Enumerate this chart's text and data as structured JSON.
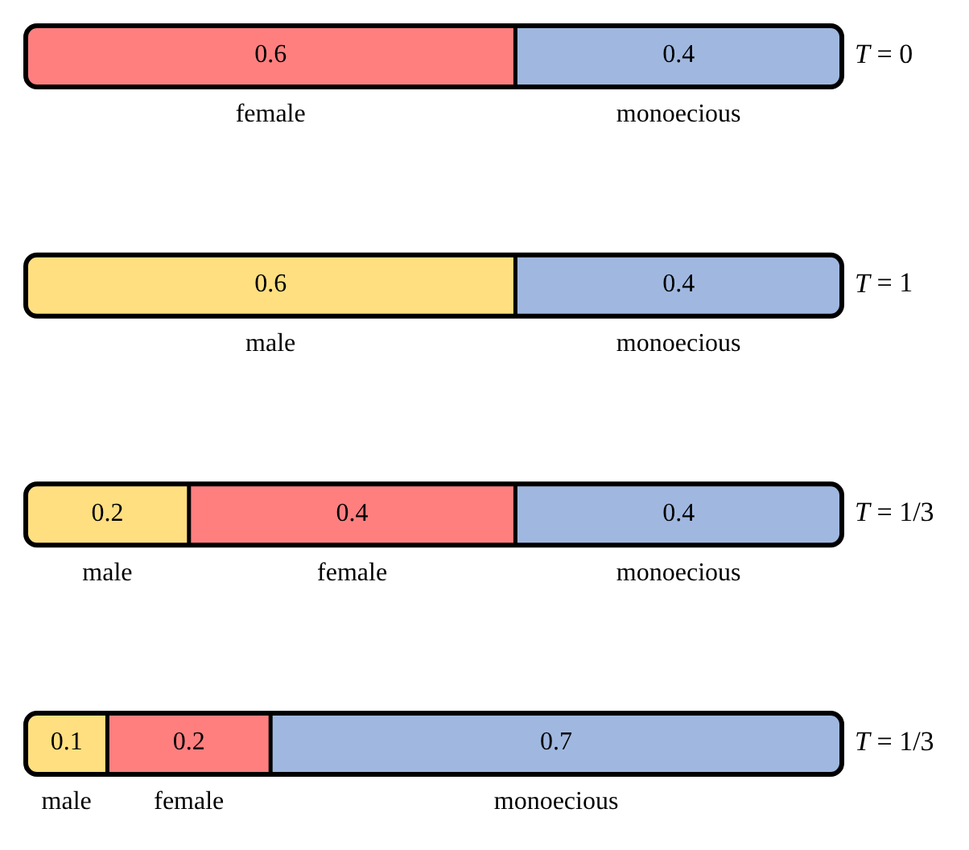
{
  "chart_data": {
    "type": "bar",
    "orientation": "horizontal",
    "stacked": true,
    "data_labels": true,
    "categories": [
      "T = 0",
      "T = 1",
      "T = 1/3",
      "T = 1/3"
    ],
    "series": [
      {
        "name": "male",
        "color": "#ffdf80",
        "values": [
          null,
          0.6,
          0.2,
          0.1
        ]
      },
      {
        "name": "female",
        "color": "#ff7f7f",
        "values": [
          0.6,
          null,
          0.4,
          0.2
        ]
      },
      {
        "name": "monoecious",
        "color": "#a0b8e0",
        "values": [
          0.4,
          0.4,
          0.4,
          0.7
        ]
      }
    ]
  }
}
